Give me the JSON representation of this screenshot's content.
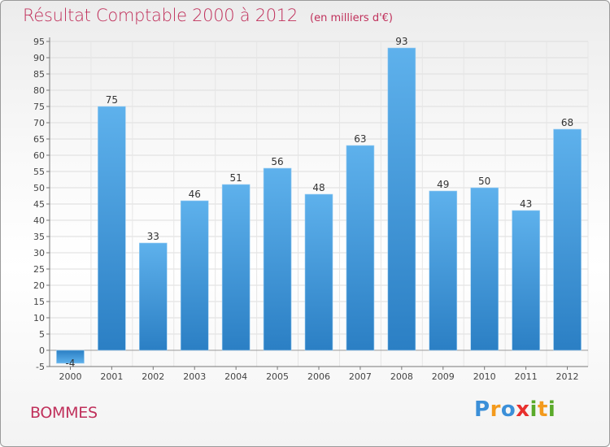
{
  "header": {
    "title": "Résultat Comptable 2000 à 2012",
    "unit": "(en milliers d'€)"
  },
  "footer": {
    "town": "BOMMES",
    "logo": [
      "P",
      "r",
      "o",
      "x",
      "i",
      "t",
      "i"
    ]
  },
  "colors": {
    "title": "#c0305b",
    "bar_light": "#5eb1ec",
    "bar_dark": "#2b7fc4",
    "logo_letters": [
      "#3b8fd8",
      "#f39a1d",
      "#3b8fd8",
      "#e8302d",
      "#5aaa2a",
      "#f39a1d",
      "#5aaa2a"
    ]
  },
  "chart_data": {
    "type": "bar",
    "categories": [
      "2000",
      "2001",
      "2002",
      "2003",
      "2004",
      "2005",
      "2006",
      "2007",
      "2008",
      "2009",
      "2010",
      "2011",
      "2012"
    ],
    "values": [
      -4,
      75,
      33,
      46,
      51,
      56,
      48,
      63,
      93,
      49,
      50,
      43,
      68
    ],
    "data_labels": [
      "-4",
      "75",
      "33",
      "46",
      "51",
      "56",
      "48",
      "63",
      "93",
      "49",
      "50",
      "43",
      "68"
    ],
    "y_ticks": [
      -5,
      0,
      5,
      10,
      15,
      20,
      25,
      30,
      35,
      40,
      45,
      50,
      55,
      60,
      65,
      70,
      75,
      80,
      85,
      90,
      95
    ],
    "ylim": [
      -5,
      95
    ],
    "grid": true,
    "legend": "none"
  }
}
